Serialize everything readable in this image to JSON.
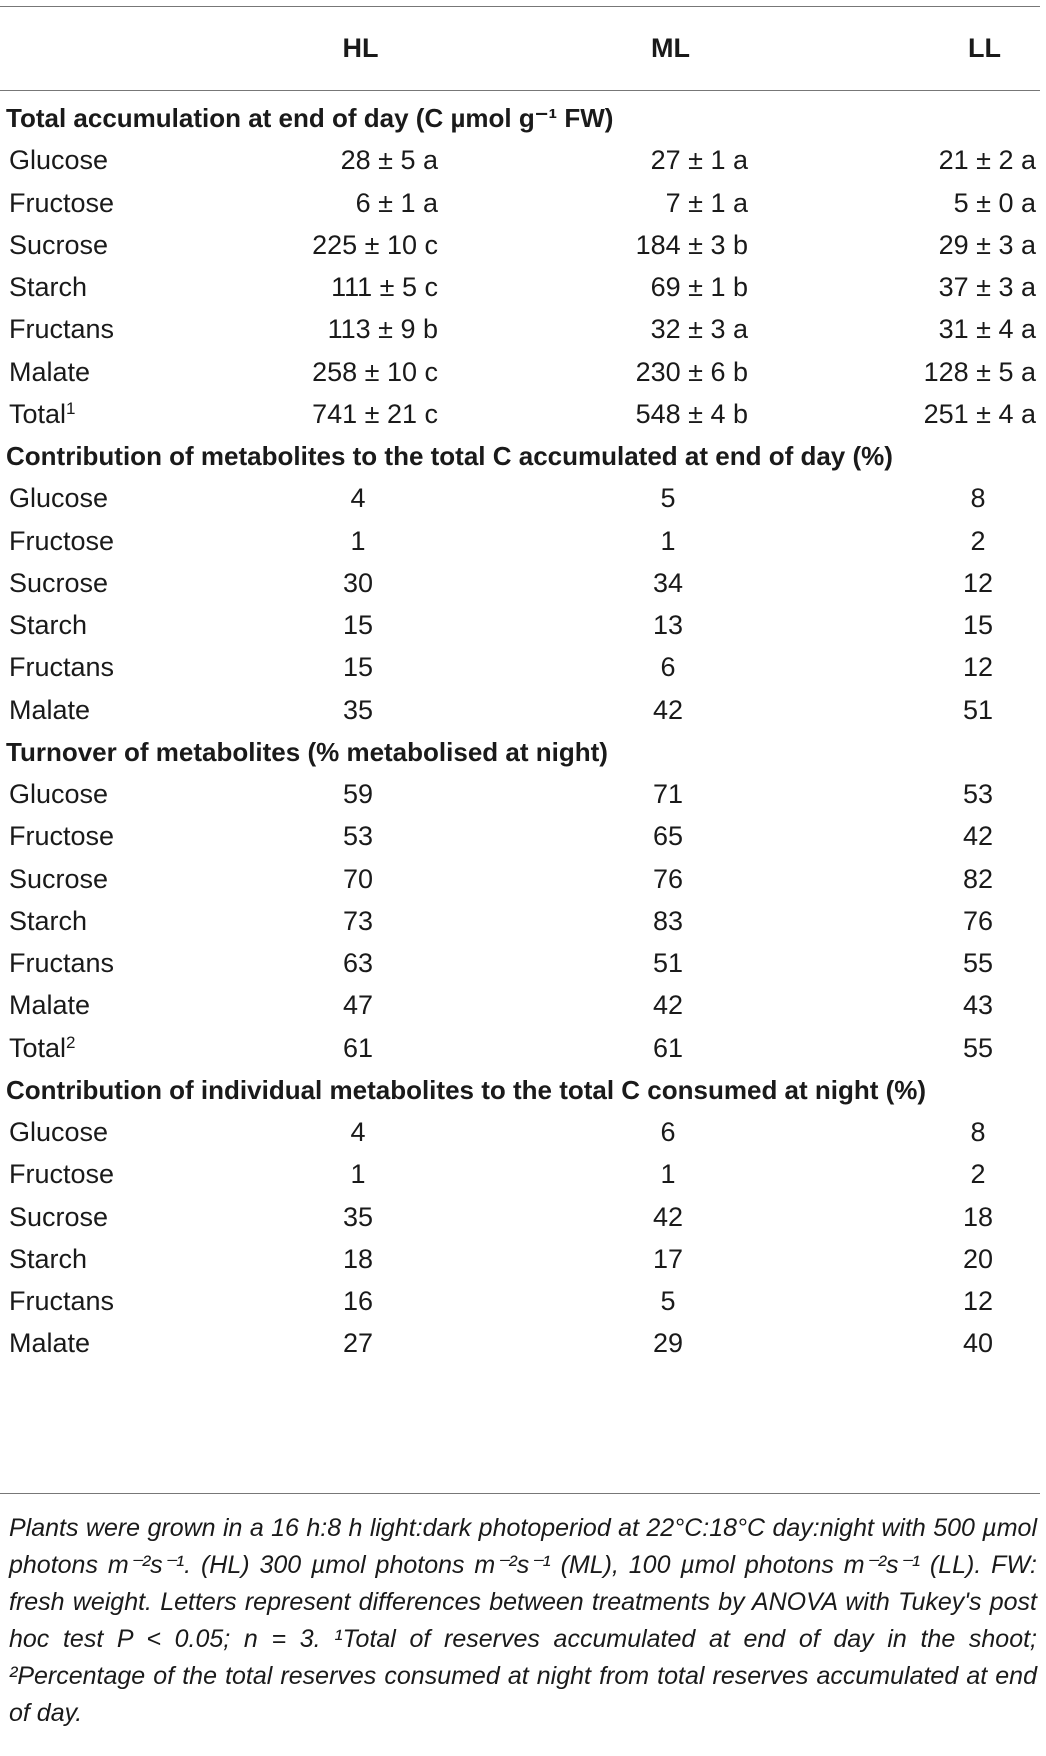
{
  "header": {
    "col_hl": "HL",
    "col_ml": "ML",
    "col_ll": "LL"
  },
  "sections": [
    {
      "title": "Total accumulation at end of day (C µmol g⁻¹ FW)",
      "rows": [
        {
          "label": "Glucose",
          "sup": "",
          "hl": "28 ± 5 a",
          "ml": "27 ± 1 a",
          "ll": "21 ± 2 a"
        },
        {
          "label": "Fructose",
          "sup": "",
          "hl": "6 ± 1 a",
          "ml": "7 ± 1 a",
          "ll": "5 ± 0 a"
        },
        {
          "label": "Sucrose",
          "sup": "",
          "hl": "225 ± 10 c",
          "ml": "184 ± 3 b",
          "ll": "29 ± 3 a"
        },
        {
          "label": "Starch",
          "sup": "",
          "hl": "111 ± 5 c",
          "ml": "69 ± 1 b",
          "ll": "37 ± 3 a"
        },
        {
          "label": "Fructans",
          "sup": "",
          "hl": "113 ± 9 b",
          "ml": "32 ± 3 a",
          "ll": "31 ± 4 a"
        },
        {
          "label": "Malate",
          "sup": "",
          "hl": "258 ± 10 c",
          "ml": "230 ± 6 b",
          "ll": "128 ± 5 a"
        },
        {
          "label": "Total",
          "sup": "1",
          "hl": "741 ± 21 c",
          "ml": "548 ± 4 b",
          "ll": "251 ± 4 a"
        }
      ]
    },
    {
      "title": "Contribution of metabolites to the total C accumulated at end of day (%)",
      "rows": [
        {
          "label": "Glucose",
          "sup": "",
          "hl": "4",
          "ml": "5",
          "ll": "8"
        },
        {
          "label": "Fructose",
          "sup": "",
          "hl": "1",
          "ml": "1",
          "ll": "2"
        },
        {
          "label": "Sucrose",
          "sup": "",
          "hl": "30",
          "ml": "34",
          "ll": "12"
        },
        {
          "label": "Starch",
          "sup": "",
          "hl": "15",
          "ml": "13",
          "ll": "15"
        },
        {
          "label": "Fructans",
          "sup": "",
          "hl": "15",
          "ml": "6",
          "ll": "12"
        },
        {
          "label": "Malate",
          "sup": "",
          "hl": "35",
          "ml": "42",
          "ll": "51"
        }
      ]
    },
    {
      "title": "Turnover of metabolites (% metabolised at night)",
      "rows": [
        {
          "label": "Glucose",
          "sup": "",
          "hl": "59",
          "ml": "71",
          "ll": "53"
        },
        {
          "label": "Fructose",
          "sup": "",
          "hl": "53",
          "ml": "65",
          "ll": "42"
        },
        {
          "label": "Sucrose",
          "sup": "",
          "hl": "70",
          "ml": "76",
          "ll": "82"
        },
        {
          "label": "Starch",
          "sup": "",
          "hl": "73",
          "ml": "83",
          "ll": "76"
        },
        {
          "label": "Fructans",
          "sup": "",
          "hl": "63",
          "ml": "51",
          "ll": "55"
        },
        {
          "label": "Malate",
          "sup": "",
          "hl": "47",
          "ml": "42",
          "ll": "43"
        },
        {
          "label": "Total",
          "sup": "2",
          "hl": "61",
          "ml": "61",
          "ll": "55"
        }
      ]
    },
    {
      "title": "Contribution of individual metabolites to the total C consumed at night (%)",
      "rows": [
        {
          "label": "Glucose",
          "sup": "",
          "hl": "4",
          "ml": "6",
          "ll": "8"
        },
        {
          "label": "Fructose",
          "sup": "",
          "hl": "1",
          "ml": "1",
          "ll": "2"
        },
        {
          "label": "Sucrose",
          "sup": "",
          "hl": "35",
          "ml": "42",
          "ll": "18"
        },
        {
          "label": "Starch",
          "sup": "",
          "hl": "18",
          "ml": "17",
          "ll": "20"
        },
        {
          "label": "Fructans",
          "sup": "",
          "hl": "16",
          "ml": "5",
          "ll": "12"
        },
        {
          "label": "Malate",
          "sup": "",
          "hl": "27",
          "ml": "29",
          "ll": "40"
        }
      ]
    }
  ],
  "footnote": "Plants were grown in a 16 h:8 h light:dark photoperiod at 22°C:18°C day:night with 500 µmol photons m⁻²s⁻¹. (HL) 300 µmol photons m⁻²s⁻¹ (ML), 100 µmol photons m⁻²s⁻¹ (LL). FW: fresh weight. Letters represent differences between treatments by ANOVA with Tukey's post hoc test P < 0.05; n = 3. ¹Total of reserves accumulated at end of day in the shoot; ²Percentage of the total reserves consumed at night from total reserves accumulated at end of day."
}
